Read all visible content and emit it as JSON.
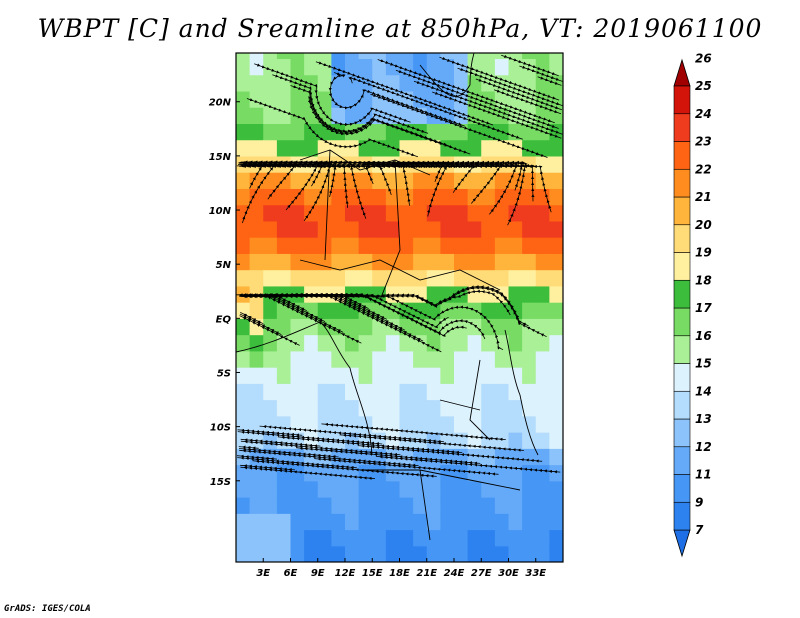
{
  "title": "WBPT [C] and Sreamline at 850hPa, VT: 2019061100",
  "footer": "GrADS: IGES/COLA",
  "map": {
    "lon_range": [
      0,
      36
    ],
    "lat_range": [
      -22.5,
      24.5
    ],
    "x_ticks": [
      "3E",
      "6E",
      "9E",
      "12E",
      "15E",
      "18E",
      "21E",
      "24E",
      "27E",
      "30E",
      "33E"
    ],
    "y_ticks": [
      "20N",
      "15N",
      "10N",
      "5N",
      "EQ",
      "5S",
      "10S",
      "15S"
    ]
  },
  "colorbar": {
    "labels": [
      "7",
      "9",
      "11",
      "12",
      "13",
      "14",
      "15",
      "16",
      "17",
      "18",
      "19",
      "20",
      "21",
      "22",
      "23",
      "24",
      "25",
      "26"
    ],
    "colors": [
      "#1e6ee6",
      "#2d82f0",
      "#4696f5",
      "#64aaf8",
      "#8cc3fa",
      "#b4dcfc",
      "#dcf2fc",
      "#aaf096",
      "#78dc64",
      "#3cbe3c",
      "#fff0a0",
      "#ffdc78",
      "#ffb43c",
      "#ff8c1e",
      "#ff6414",
      "#f03c1e",
      "#d2140a",
      "#a00000"
    ]
  }
}
